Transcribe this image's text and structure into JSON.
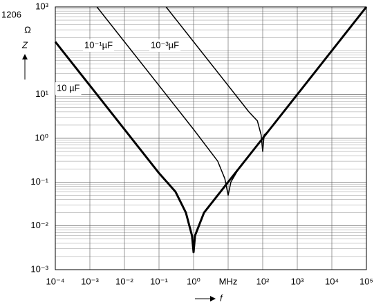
{
  "chart_data": {
    "type": "line",
    "annotation": "1206",
    "y_label": "Z",
    "y_unit": "Ω",
    "x_label": "f",
    "log_x": true,
    "log_y": true,
    "grid": true,
    "xlim": [
      0.0001,
      100000
    ],
    "ylim": [
      0.001,
      1000
    ],
    "xticks": [
      {
        "value": 0.0001,
        "label": "10⁻⁴"
      },
      {
        "value": 0.001,
        "label": "10⁻³"
      },
      {
        "value": 0.01,
        "label": "10⁻²"
      },
      {
        "value": 0.1,
        "label": "10⁻¹"
      },
      {
        "value": 1,
        "label": "10⁰"
      },
      {
        "value": 10,
        "label": "MHz"
      },
      {
        "value": 100,
        "label": "10²"
      },
      {
        "value": 1000,
        "label": "10³"
      },
      {
        "value": 10000,
        "label": "10⁴"
      },
      {
        "value": 100000,
        "label": "10⁵"
      }
    ],
    "yticks": [
      {
        "value": 0.001,
        "label": "10⁻³"
      },
      {
        "value": 0.01,
        "label": "10⁻²"
      },
      {
        "value": 0.1,
        "label": "10⁻¹"
      },
      {
        "value": 1,
        "label": "10⁰"
      },
      {
        "value": 10,
        "label": "10¹"
      },
      {
        "value": 1000,
        "label": "10³"
      }
    ],
    "series": [
      {
        "name": "10 µF",
        "color": "#000000",
        "width": 3,
        "x": [
          0.0001,
          0.001,
          0.01,
          0.1,
          0.3,
          0.6,
          0.9,
          1,
          1.1,
          2,
          10,
          100,
          1000,
          10000,
          100000
        ],
        "values": [
          160,
          16,
          1.6,
          0.16,
          0.06,
          0.02,
          0.006,
          0.0025,
          0.006,
          0.02,
          0.1,
          1,
          10,
          100,
          1000
        ]
      },
      {
        "name": "10⁻¹µF",
        "color": "#000000",
        "width": 1.5,
        "x": [
          0.0016,
          0.01,
          0.1,
          1,
          5,
          8,
          10,
          12,
          20
        ],
        "values": [
          1000,
          160,
          16,
          1.6,
          0.3,
          0.12,
          0.05,
          0.1,
          0.2
        ]
      },
      {
        "name": "10⁻³µF",
        "color": "#000000",
        "width": 1.5,
        "x": [
          0.16,
          1,
          10,
          40,
          70,
          90,
          100,
          110,
          150
        ],
        "values": [
          1000,
          160,
          16,
          4,
          2.5,
          1.2,
          0.5,
          1.2,
          1.5
        ]
      }
    ]
  }
}
